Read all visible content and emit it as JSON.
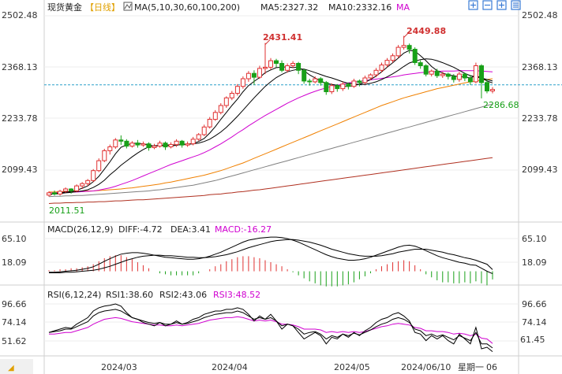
{
  "header": {
    "symbol": "现货黄金",
    "period": "【日线】",
    "ma_label": "MA(5,10,30,60,100,200)",
    "ma5": "MA5:2327.32",
    "ma10": "MA10:2332.16",
    "ma_more": "MA"
  },
  "toolbar_icons": [
    "add-indicator-icon",
    "zoom-out-icon",
    "zoom-in-icon",
    "settings-icon"
  ],
  "colors": {
    "up": "#e03030",
    "down": "#18a018",
    "ma5": "#000000",
    "ma10": "#000000",
    "ma30": "#d000d0",
    "ma60": "#f08000",
    "ma100": "#808080",
    "ma200": "#b03020",
    "price_line": "#2aa0c8",
    "rsi1": "#000000",
    "rsi2": "#000000",
    "rsi3": "#d000d0"
  },
  "price_panel": {
    "y_ticks": [
      "2502.48",
      "2368.13",
      "2233.78",
      "2099.43"
    ],
    "high1": "2431.41",
    "high2": "2449.88",
    "low": "2011.51",
    "current": "2286.68"
  },
  "macd_panel": {
    "label": "MACD(26,12,9)",
    "diff": "DIFF:-4.72",
    "dea": "DEA:3.41",
    "macd": "MACD:-16.27",
    "y_ticks": [
      "65.10",
      "18.09"
    ]
  },
  "rsi_panel": {
    "label": "RSI(6,12,24)",
    "rsi1": "RSI1:38.60",
    "rsi2": "RSI2:43.06",
    "rsi3": "RSI3:48.52",
    "y_ticks": [
      "96.66",
      "74.14",
      "51.62"
    ],
    "right_value": "61.45"
  },
  "x_axis": {
    "labels": [
      "2024/03",
      "2024/04",
      "2024/05"
    ],
    "date": "2024/06/10",
    "weekday": "星期一",
    "trailing": "06"
  },
  "chart_data": {
    "type": "candlestick",
    "y_range": [
      2011.51,
      2502.48
    ],
    "candles": [
      [
        2034,
        2040,
        2030,
        2044
      ],
      [
        2040,
        2037,
        2033,
        2046
      ],
      [
        2037,
        2044,
        2033,
        2048
      ],
      [
        2044,
        2050,
        2040,
        2054
      ],
      [
        2050,
        2045,
        2038,
        2052
      ],
      [
        2045,
        2058,
        2042,
        2062
      ],
      [
        2058,
        2064,
        2050,
        2068
      ],
      [
        2064,
        2072,
        2058,
        2076
      ],
      [
        2072,
        2098,
        2068,
        2102
      ],
      [
        2098,
        2124,
        2094,
        2130
      ],
      [
        2124,
        2150,
        2120,
        2155
      ],
      [
        2150,
        2160,
        2140,
        2166
      ],
      [
        2160,
        2178,
        2155,
        2183
      ],
      [
        2178,
        2175,
        2165,
        2190
      ],
      [
        2175,
        2162,
        2156,
        2180
      ],
      [
        2162,
        2170,
        2158,
        2175
      ],
      [
        2170,
        2165,
        2158,
        2178
      ],
      [
        2165,
        2168,
        2160,
        2174
      ],
      [
        2168,
        2158,
        2150,
        2172
      ],
      [
        2158,
        2162,
        2154,
        2168
      ],
      [
        2162,
        2170,
        2158,
        2176
      ],
      [
        2170,
        2160,
        2152,
        2174
      ],
      [
        2160,
        2166,
        2156,
        2172
      ],
      [
        2166,
        2175,
        2160,
        2180
      ],
      [
        2175,
        2165,
        2158,
        2178
      ],
      [
        2165,
        2168,
        2160,
        2174
      ],
      [
        2168,
        2180,
        2164,
        2186
      ],
      [
        2180,
        2192,
        2176,
        2196
      ],
      [
        2192,
        2212,
        2188,
        2218
      ],
      [
        2212,
        2232,
        2208,
        2238
      ],
      [
        2232,
        2250,
        2228,
        2256
      ],
      [
        2250,
        2268,
        2245,
        2274
      ],
      [
        2268,
        2288,
        2262,
        2292
      ],
      [
        2288,
        2300,
        2282,
        2306
      ],
      [
        2300,
        2318,
        2294,
        2324
      ],
      [
        2318,
        2338,
        2312,
        2344
      ],
      [
        2338,
        2352,
        2330,
        2358
      ],
      [
        2352,
        2342,
        2322,
        2360
      ],
      [
        2342,
        2365,
        2338,
        2372
      ],
      [
        2365,
        2368,
        2350,
        2431.41
      ],
      [
        2368,
        2385,
        2362,
        2392
      ],
      [
        2385,
        2378,
        2368,
        2390
      ],
      [
        2378,
        2360,
        2355,
        2386
      ],
      [
        2360,
        2372,
        2354,
        2378
      ],
      [
        2372,
        2378,
        2366,
        2384
      ],
      [
        2378,
        2360,
        2350,
        2382
      ],
      [
        2360,
        2332,
        2325,
        2364
      ],
      [
        2332,
        2330,
        2320,
        2338
      ],
      [
        2330,
        2338,
        2326,
        2344
      ],
      [
        2338,
        2328,
        2320,
        2342
      ],
      [
        2328,
        2304,
        2296,
        2332
      ],
      [
        2304,
        2320,
        2298,
        2326
      ],
      [
        2320,
        2312,
        2304,
        2324
      ],
      [
        2312,
        2324,
        2306,
        2330
      ],
      [
        2324,
        2318,
        2310,
        2328
      ],
      [
        2318,
        2332,
        2314,
        2338
      ],
      [
        2332,
        2328,
        2318,
        2336
      ],
      [
        2328,
        2340,
        2322,
        2346
      ],
      [
        2340,
        2348,
        2334,
        2352
      ],
      [
        2348,
        2360,
        2342,
        2366
      ],
      [
        2360,
        2374,
        2354,
        2380
      ],
      [
        2374,
        2386,
        2368,
        2392
      ],
      [
        2386,
        2398,
        2380,
        2404
      ],
      [
        2398,
        2420,
        2392,
        2426
      ],
      [
        2420,
        2425,
        2414,
        2449.88
      ],
      [
        2425,
        2415,
        2404,
        2430
      ],
      [
        2415,
        2380,
        2374,
        2420
      ],
      [
        2380,
        2372,
        2364,
        2386
      ],
      [
        2372,
        2350,
        2344,
        2376
      ],
      [
        2350,
        2358,
        2344,
        2362
      ],
      [
        2358,
        2346,
        2340,
        2364
      ],
      [
        2346,
        2350,
        2340,
        2356
      ],
      [
        2350,
        2344,
        2336,
        2354
      ],
      [
        2344,
        2336,
        2328,
        2350
      ],
      [
        2336,
        2350,
        2330,
        2356
      ],
      [
        2350,
        2340,
        2332,
        2354
      ],
      [
        2340,
        2330,
        2322,
        2348
      ],
      [
        2330,
        2372,
        2326,
        2380
      ],
      [
        2372,
        2328,
        2286.68,
        2376
      ],
      [
        2328,
        2306,
        2300,
        2336
      ],
      [
        2306,
        2310,
        2300,
        2316
      ]
    ],
    "ma5": [
      2035,
      2038,
      2040,
      2042,
      2043,
      2047,
      2052,
      2058,
      2069,
      2083,
      2102,
      2121,
      2142,
      2159,
      2165,
      2169,
      2170,
      2168,
      2165,
      2162,
      2163,
      2164,
      2163,
      2164,
      2167,
      2167,
      2169,
      2174,
      2182,
      2196,
      2213,
      2232,
      2250,
      2268,
      2285,
      2304,
      2320,
      2331,
      2341,
      2354,
      2361,
      2367,
      2368,
      2369,
      2367,
      2368,
      2359,
      2348,
      2340,
      2332,
      2326,
      2323,
      2321,
      2318,
      2318,
      2320,
      2324,
      2329,
      2336,
      2345,
      2356,
      2368,
      2380,
      2392,
      2405,
      2412,
      2410,
      2398,
      2385,
      2370,
      2359,
      2353,
      2348,
      2346,
      2343,
      2343,
      2340,
      2346,
      2340,
      2332,
      2327
    ],
    "ma10": [
      2036,
      2037,
      2038,
      2040,
      2041,
      2043,
      2045,
      2048,
      2054,
      2062,
      2073,
      2087,
      2099,
      2112,
      2123,
      2134,
      2144,
      2153,
      2160,
      2163,
      2164,
      2165,
      2165,
      2165,
      2166,
      2167,
      2168,
      2170,
      2174,
      2180,
      2189,
      2199,
      2211,
      2225,
      2240,
      2256,
      2272,
      2288,
      2303,
      2318,
      2330,
      2341,
      2349,
      2356,
      2360,
      2363,
      2363,
      2359,
      2354,
      2349,
      2344,
      2340,
      2335,
      2330,
      2326,
      2324,
      2323,
      2323,
      2326,
      2330,
      2336,
      2343,
      2351,
      2360,
      2370,
      2379,
      2384,
      2388,
      2390,
      2389,
      2385,
      2380,
      2374,
      2368,
      2360,
      2352,
      2346,
      2343,
      2340,
      2336,
      2332
    ],
    "ma30": [
      2040,
      2040,
      2041,
      2041,
      2042,
      2042,
      2043,
      2044,
      2045,
      2047,
      2050,
      2053,
      2057,
      2062,
      2067,
      2072,
      2078,
      2084,
      2090,
      2096,
      2102,
      2108,
      2114,
      2119,
      2124,
      2129,
      2134,
      2139,
      2145,
      2152,
      2160,
      2168,
      2177,
      2186,
      2196,
      2205,
      2215,
      2224,
      2233,
      2242,
      2250,
      2258,
      2266,
      2274,
      2281,
      2288,
      2294,
      2300,
      2305,
      2310,
      2314,
      2318,
      2321,
      2324,
      2327,
      2329,
      2331,
      2333,
      2335,
      2337,
      2339,
      2341,
      2343,
      2345,
      2348,
      2350,
      2352,
      2354,
      2355,
      2356,
      2357,
      2358,
      2358,
      2358,
      2359,
      2359,
      2359,
      2359,
      2358,
      2357,
      2356
    ],
    "ma60": [
      2042,
      2042,
      2043,
      2043,
      2043,
      2044,
      2044,
      2045,
      2045,
      2046,
      2047,
      2048,
      2049,
      2050,
      2052,
      2053,
      2055,
      2057,
      2059,
      2061,
      2063,
      2066,
      2068,
      2071,
      2074,
      2077,
      2080,
      2083,
      2086,
      2090,
      2094,
      2098,
      2103,
      2108,
      2113,
      2118,
      2124,
      2130,
      2136,
      2142,
      2148,
      2154,
      2160,
      2166,
      2172,
      2178,
      2184,
      2190,
      2196,
      2202,
      2208,
      2214,
      2220,
      2226,
      2232,
      2238,
      2244,
      2250,
      2256,
      2262,
      2268,
      2273,
      2278,
      2283,
      2288,
      2292,
      2296,
      2300,
      2304,
      2308,
      2312,
      2315,
      2318,
      2321,
      2324,
      2327,
      2330,
      2332,
      2334,
      2336,
      2338
    ],
    "ma100": [
      2030,
      2031,
      2031,
      2032,
      2032,
      2033,
      2033,
      2034,
      2035,
      2036,
      2037,
      2038,
      2039,
      2040,
      2041,
      2042,
      2043,
      2044,
      2045,
      2047,
      2048,
      2050,
      2052,
      2054,
      2056,
      2058,
      2060,
      2063,
      2066,
      2069,
      2072,
      2076,
      2080,
      2084,
      2088,
      2092,
      2096,
      2100,
      2104,
      2108,
      2112,
      2116,
      2120,
      2124,
      2128,
      2132,
      2136,
      2140,
      2144,
      2148,
      2152,
      2156,
      2160,
      2164,
      2168,
      2172,
      2176,
      2180,
      2184,
      2188,
      2192,
      2196,
      2200,
      2204,
      2208,
      2212,
      2216,
      2220,
      2224,
      2228,
      2232,
      2236,
      2240,
      2244,
      2248,
      2252,
      2256,
      2260,
      2264,
      2268,
      2272
    ],
    "ma200": [
      2012,
      2013,
      2013,
      2014,
      2014,
      2015,
      2015,
      2016,
      2016,
      2017,
      2017,
      2018,
      2019,
      2019,
      2020,
      2021,
      2022,
      2022,
      2023,
      2024,
      2025,
      2026,
      2027,
      2028,
      2029,
      2030,
      2031,
      2032,
      2033,
      2035,
      2036,
      2037,
      2039,
      2040,
      2042,
      2043,
      2045,
      2047,
      2048,
      2050,
      2052,
      2054,
      2056,
      2058,
      2060,
      2062,
      2064,
      2066,
      2068,
      2070,
      2072,
      2074,
      2076,
      2078,
      2080,
      2082,
      2084,
      2086,
      2088,
      2090,
      2092,
      2094,
      2096,
      2098,
      2100,
      2102,
      2104,
      2106,
      2108,
      2110,
      2112,
      2114,
      2116,
      2118,
      2120,
      2122,
      2124,
      2126,
      2128,
      2130,
      2132
    ],
    "macd_range": [
      -20,
      70
    ],
    "macd_diff": [
      -2,
      -2,
      -1,
      0,
      1,
      2,
      4,
      6,
      9,
      14,
      20,
      25,
      30,
      34,
      36,
      37,
      37,
      36,
      34,
      32,
      30,
      28,
      27,
      26,
      25,
      24,
      24,
      25,
      27,
      30,
      34,
      38,
      43,
      48,
      53,
      58,
      62,
      64,
      66,
      67,
      68,
      68,
      67,
      65,
      62,
      58,
      53,
      48,
      43,
      38,
      33,
      29,
      26,
      24,
      22,
      22,
      23,
      25,
      28,
      32,
      36,
      40,
      44,
      48,
      51,
      52,
      50,
      46,
      41,
      36,
      31,
      27,
      24,
      21,
      18,
      16,
      13,
      12,
      6,
      0,
      -4.72
    ],
    "macd_dea": [
      -3,
      -3,
      -3,
      -2,
      -2,
      -1,
      0,
      1,
      2,
      4,
      7,
      10,
      14,
      18,
      22,
      25,
      28,
      30,
      31,
      32,
      32,
      31,
      31,
      30,
      29,
      28,
      28,
      27,
      27,
      28,
      29,
      31,
      33,
      36,
      39,
      43,
      47,
      50,
      53,
      56,
      59,
      61,
      62,
      63,
      63,
      62,
      60,
      58,
      55,
      52,
      48,
      44,
      41,
      38,
      35,
      33,
      31,
      30,
      30,
      30,
      31,
      33,
      35,
      38,
      40,
      42,
      44,
      44,
      44,
      42,
      40,
      38,
      35,
      33,
      30,
      27,
      25,
      22,
      18,
      14,
      3.41
    ],
    "rsi_range": [
      40,
      100
    ],
    "rsi1": [
      62,
      64,
      66,
      68,
      67,
      72,
      76,
      80,
      88,
      92,
      94,
      95,
      96.66,
      94,
      86,
      80,
      78,
      74,
      72,
      70,
      74,
      70,
      72,
      76,
      72,
      74,
      78,
      80,
      84,
      86,
      88,
      88,
      90,
      90,
      92,
      90,
      84,
      76,
      82,
      78,
      84,
      76,
      66,
      72,
      70,
      62,
      54,
      58,
      62,
      58,
      48,
      56,
      54,
      60,
      56,
      62,
      58,
      64,
      68,
      74,
      78,
      80,
      84,
      86,
      82,
      76,
      62,
      60,
      52,
      58,
      54,
      58,
      52,
      48,
      60,
      54,
      48,
      68,
      42,
      44,
      38.6
    ],
    "rsi2": [
      62,
      63,
      64,
      66,
      66,
      69,
      72,
      75,
      82,
      86,
      88,
      89,
      90,
      88,
      84,
      80,
      78,
      76,
      74,
      73,
      74,
      72,
      72,
      74,
      72,
      73,
      75,
      77,
      80,
      82,
      84,
      85,
      86,
      86,
      88,
      86,
      82,
      78,
      80,
      78,
      80,
      76,
      70,
      72,
      70,
      66,
      60,
      62,
      63,
      60,
      54,
      58,
      56,
      60,
      58,
      61,
      59,
      62,
      65,
      69,
      72,
      74,
      78,
      80,
      78,
      74,
      66,
      64,
      58,
      60,
      57,
      59,
      56,
      53,
      58,
      55,
      52,
      62,
      48,
      48,
      43.06
    ],
    "rsi3": [
      60,
      60,
      61,
      62,
      62,
      64,
      66,
      68,
      72,
      75,
      78,
      79,
      80,
      79,
      77,
      75,
      74,
      73,
      72,
      71,
      71,
      70,
      70,
      71,
      70,
      71,
      72,
      73,
      75,
      77,
      78,
      79,
      80,
      80,
      81,
      80,
      78,
      76,
      77,
      76,
      77,
      75,
      72,
      72,
      71,
      69,
      66,
      66,
      66,
      65,
      62,
      63,
      62,
      63,
      62,
      63,
      62,
      63,
      65,
      67,
      69,
      70,
      72,
      73,
      72,
      71,
      68,
      67,
      64,
      64,
      63,
      63,
      62,
      60,
      61,
      60,
      58,
      60,
      55,
      54,
      48.52
    ]
  }
}
